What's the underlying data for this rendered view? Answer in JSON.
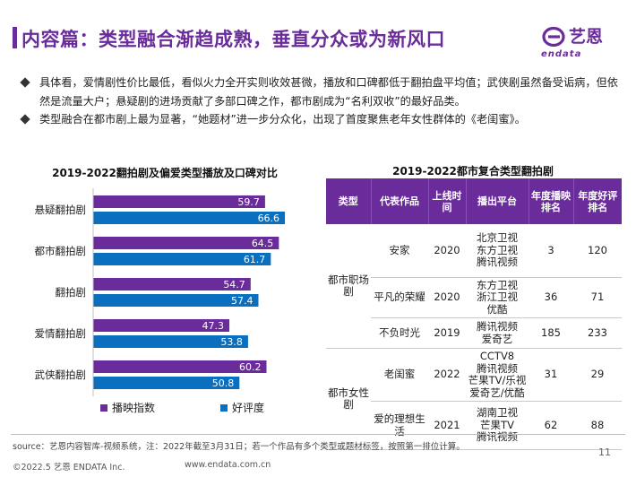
{
  "page": {
    "title": "内容篇：类型融合渐趋成熟，垂直分众或为新风口",
    "bullets": [
      "具体看，爱情剧性价比最低，看似火力全开实则收效甚微，播放和口碑都低于翻拍盘平均值；武侠剧虽然备受诟病，但依然是流量大户；悬疑剧的进场贡献了多部口碑之作，都市剧成为“名利双收”的最好品类。",
      "类型融合在都市剧上最为显著，“她题材”进一步分众化，出现了首度聚焦老年女性群体的《老闺蜜》。"
    ],
    "source": "source：艺恩内容智库-视频系统，注：2022年截至3月31日；若一个作品有多个类型或题材标签，按照第一排位计算。",
    "page_number": "11",
    "copyright": "©2022.5 艺恩 ENDATA Inc.",
    "website": "www.endata.com.cn"
  },
  "logo": {
    "cn": "艺恩",
    "en": "endata",
    "color": "#6a2c9b",
    "icon": "endata-logo-icon"
  },
  "chart_data": {
    "type": "bar",
    "orientation": "horizontal",
    "title": "2019-2022翻拍剧及偏爱类型播放及口碑对比",
    "categories": [
      "悬疑翻拍剧",
      "都市翻拍剧",
      "翻拍剧",
      "爱情翻拍剧",
      "武侠翻拍剧"
    ],
    "series": [
      {
        "name": "播映指数",
        "color": "#6a2c9b",
        "values": [
          59.7,
          64.5,
          54.7,
          47.3,
          60.2
        ]
      },
      {
        "name": "好评度",
        "color": "#0b6fbf",
        "values": [
          66.6,
          61.7,
          57.4,
          53.8,
          50.8
        ]
      }
    ],
    "xlim": [
      0,
      70
    ],
    "grid": false,
    "legend": "bottom"
  },
  "table": {
    "title": "2019-2022都市复合类型翻拍剧",
    "headers": [
      "类型",
      "代表作品",
      "上线时间",
      "播出平台",
      "年度播映排名",
      "年度好评排名"
    ],
    "groups": [
      {
        "type": "都市职场剧",
        "rows": [
          {
            "title": "安家",
            "year": "2020",
            "platforms": [
              "北京卫视",
              "东方卫视",
              "腾讯视频"
            ],
            "play_rank": "3",
            "rating_rank": "120"
          },
          {
            "title": "平凡的荣耀",
            "year": "2020",
            "platforms": [
              "东方卫视",
              "浙江卫视",
              "优酷"
            ],
            "play_rank": "36",
            "rating_rank": "71"
          },
          {
            "title": "不负时光",
            "year": "2019",
            "platforms": [
              "腾讯视频",
              "爱奇艺"
            ],
            "play_rank": "185",
            "rating_rank": "233"
          }
        ]
      },
      {
        "type": "都市女性剧",
        "rows": [
          {
            "title": "老闺蜜",
            "year": "2022",
            "platforms": [
              "CCTV8",
              "腾讯视频",
              "芒果TV/乐视",
              "爱奇艺/优酷"
            ],
            "play_rank": "31",
            "rating_rank": "29"
          },
          {
            "title": "爱的理想生活",
            "year": "2021",
            "platforms": [
              "湖南卫视",
              "芒果TV",
              "腾讯视频"
            ],
            "play_rank": "62",
            "rating_rank": "88"
          }
        ]
      }
    ]
  }
}
